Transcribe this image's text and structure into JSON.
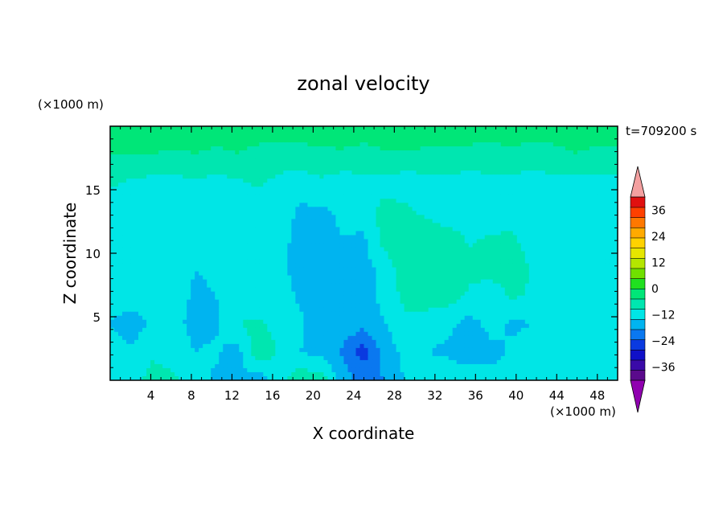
{
  "chart_data": {
    "type": "heatmap",
    "title": "zonal velocity",
    "xlabel": "X coordinate",
    "ylabel": "Z coordinate",
    "x_unit": "(×1000 m)",
    "y_unit": "(×1000 m)",
    "time_label": "t=709200 s",
    "xlim": [
      0,
      50
    ],
    "ylim": [
      0,
      20
    ],
    "x_ticks": [
      "4",
      "8",
      "12",
      "16",
      "20",
      "24",
      "28",
      "32",
      "36",
      "40",
      "44",
      "48"
    ],
    "y_ticks": [
      "5",
      "10",
      "15"
    ],
    "colorbar": {
      "min": -42,
      "max": 42,
      "step": 6,
      "tick_labels": [
        "36",
        "24",
        "12",
        "0",
        "-12",
        "-24",
        "-36"
      ],
      "colors": [
        "#5a0a8c",
        "#3a0aa8",
        "#1010c8",
        "#0a3ae0",
        "#0a78f0",
        "#00b4f0",
        "#00e6e6",
        "#00e6b0",
        "#00e678",
        "#20e020",
        "#70e000",
        "#b4e600",
        "#e6e600",
        "#ffd200",
        "#ffaa00",
        "#ff7800",
        "#ff4000",
        "#e01010"
      ],
      "under_color": "#9000b0",
      "over_color": "#f4a0a0"
    },
    "field": {
      "nx": 25,
      "nz": 10,
      "rows_bottom_to_top": [
        [
          -6,
          -2,
          2,
          1,
          -4,
          -7,
          -6,
          -10,
          -2,
          4,
          3,
          -9,
          -14,
          -12,
          -5,
          -3,
          -2,
          -2,
          -4,
          -4,
          -3,
          -3,
          -4,
          -2,
          -2
        ],
        [
          -3,
          -5,
          -1,
          -2,
          -6,
          -5,
          -9,
          5,
          -1,
          -6,
          -8,
          -13,
          -21,
          -9,
          -4,
          -6,
          -7,
          -10,
          -8,
          -5,
          -3,
          -4,
          -6,
          -4,
          -3
        ],
        [
          -6,
          -9,
          -5,
          -4,
          -8,
          -7,
          0,
          1,
          -2,
          -5,
          -10,
          -8,
          -10,
          -6,
          -2,
          -4,
          -5,
          -8,
          -4,
          -7,
          -6,
          -4,
          -5,
          -6,
          -6
        ],
        [
          -4,
          -2,
          -5,
          -3,
          -7,
          -6,
          -3,
          -6,
          -3,
          -7,
          -10,
          -9,
          -8,
          -4,
          2,
          4,
          3,
          -1,
          -4,
          1,
          -1,
          -4,
          -3,
          -4,
          -2
        ],
        [
          -3,
          -3,
          -5,
          -2,
          -6,
          -5,
          -3,
          -5,
          -4,
          -9,
          -9,
          -7,
          -8,
          -4,
          5,
          5,
          4,
          2,
          3,
          5,
          -1,
          -3,
          -2,
          -3,
          -3
        ],
        [
          -4,
          -4,
          -3,
          -3,
          -5,
          -4,
          -2,
          -6,
          -4,
          -8,
          -8,
          -6,
          -7,
          3,
          6,
          5,
          4,
          -1,
          1,
          2,
          -5,
          -4,
          -3,
          -4,
          -3
        ],
        [
          -3,
          -3,
          -2,
          -3,
          -4,
          -3,
          -4,
          -4,
          -3,
          -7,
          -7,
          -5,
          -3,
          2,
          1,
          -2,
          -6,
          -3,
          -6,
          -5,
          -4,
          -3,
          -4,
          -3,
          -4
        ],
        [
          1,
          -1,
          -2,
          -2,
          -1,
          -2,
          -1,
          1,
          -2,
          -3,
          -1,
          -3,
          -2,
          -2,
          -3,
          -2,
          -2,
          -3,
          -2,
          -2,
          -3,
          -2,
          -2,
          -2,
          -2
        ],
        [
          6,
          6,
          6,
          5,
          6,
          5,
          6,
          5,
          4,
          4,
          5,
          5,
          4,
          5,
          5,
          4,
          4,
          5,
          4,
          5,
          4,
          5,
          6,
          5,
          5
        ],
        [
          8,
          9,
          10,
          11,
          9,
          9,
          8,
          8,
          8,
          9,
          9,
          10,
          9,
          11,
          12,
          12,
          10,
          8,
          8,
          9,
          8,
          8,
          8,
          9,
          9
        ]
      ]
    }
  }
}
